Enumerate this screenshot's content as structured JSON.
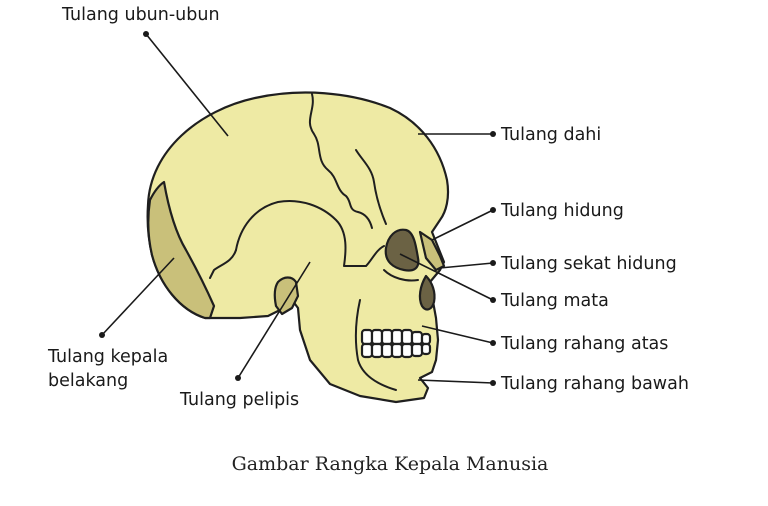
{
  "colors": {
    "bone": "#eeeaa4",
    "bone_dark": "#c9c07a",
    "cavity": "#6b6244",
    "teeth": "#ffffff"
  },
  "labels": {
    "parietal": "Tulang ubun-ubun",
    "frontal": "Tulang dahi",
    "nasal": "Tulang hidung",
    "septum": "Tulang sekat hidung",
    "orbit": "Tulang mata",
    "maxilla": "Tulang rahang atas",
    "mandible": "Tulang rahang bawah",
    "occipital_line1": "Tulang kepala",
    "occipital_line2": "belakang",
    "temporal": "Tulang pelipis"
  },
  "caption": "Gambar Rangka Kepala Manusia"
}
